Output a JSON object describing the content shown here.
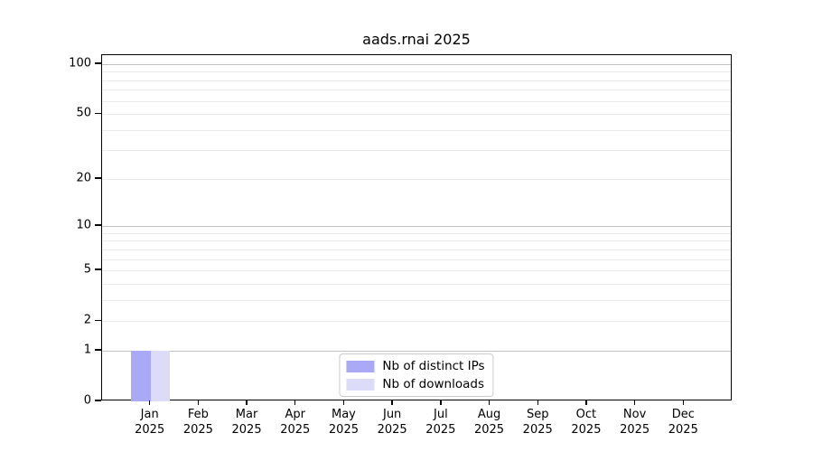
{
  "title": "aads.rnai 2025",
  "chart_data": {
    "type": "bar",
    "title": "aads.rnai 2025",
    "categories": [
      "Jan",
      "Feb",
      "Mar",
      "Apr",
      "May",
      "Jun",
      "Jul",
      "Aug",
      "Sep",
      "Oct",
      "Nov",
      "Dec"
    ],
    "x_year_label": "2025",
    "series": [
      {
        "name": "Nb of distinct IPs",
        "color": "#a9a9f6",
        "values": [
          1,
          0,
          0,
          0,
          0,
          0,
          0,
          0,
          0,
          0,
          0,
          0
        ]
      },
      {
        "name": "Nb of downloads",
        "color": "#dcdcf8",
        "values": [
          1,
          0,
          0,
          0,
          0,
          0,
          0,
          0,
          0,
          0,
          0,
          0
        ]
      }
    ],
    "y_axis": {
      "scale": "log1p",
      "tick_values": [
        0,
        1,
        2,
        5,
        10,
        20,
        50,
        100
      ],
      "major_gridlines": [
        1,
        10,
        100
      ],
      "minor_gridlines": [
        2,
        3,
        4,
        5,
        6,
        7,
        8,
        9,
        20,
        30,
        40,
        50,
        60,
        70,
        80,
        90
      ],
      "range": [
        0,
        113
      ]
    },
    "legend": {
      "position": "lower-center"
    },
    "colors": {
      "axis": "#000000",
      "major_grid": "#c2c2c2",
      "minor_grid": "#eaeaea",
      "background": "#ffffff"
    }
  }
}
